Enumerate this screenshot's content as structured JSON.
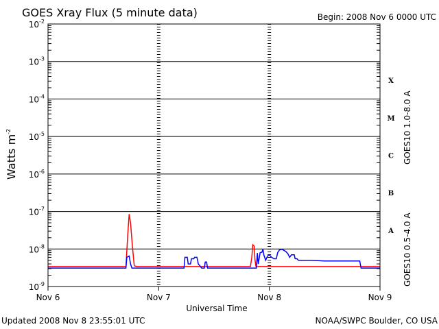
{
  "header": {
    "title": "GOES Xray Flux (5 minute data)",
    "begin": "Begin:  2008 Nov 6 0000 UTC"
  },
  "footer": {
    "updated": "Updated 2008 Nov  8 23:55:01 UTC",
    "credit": "NOAA/SWPC Boulder, CO USA"
  },
  "colors": {
    "long": "#ff0000",
    "short": "#0000ff",
    "grid": "#000000"
  },
  "chart_data": {
    "type": "line",
    "title": "GOES Xray Flux (5 minute data)",
    "xlabel": "Universal Time",
    "ylabel_base": "Watts m",
    "ylabel_exp": "-2",
    "y_scale": "log",
    "ylim": [
      1e-09,
      0.01
    ],
    "y_ticks": [
      {
        "base": "10",
        "exp": "-9",
        "value": 1e-09
      },
      {
        "base": "10",
        "exp": "-8",
        "value": 1e-08
      },
      {
        "base": "10",
        "exp": "-7",
        "value": 1e-07
      },
      {
        "base": "10",
        "exp": "-6",
        "value": 1e-06
      },
      {
        "base": "10",
        "exp": "-5",
        "value": 1e-05
      },
      {
        "base": "10",
        "exp": "-4",
        "value": 0.0001
      },
      {
        "base": "10",
        "exp": "-3",
        "value": 0.001
      },
      {
        "base": "10",
        "exp": "-2",
        "value": 0.01
      }
    ],
    "x_ticks": [
      "Nov 6",
      "Nov 7",
      "Nov 8",
      "Nov 9"
    ],
    "xlim_hours": [
      0,
      72
    ],
    "flare_classes": [
      {
        "label": "A",
        "value": 3.16e-08
      },
      {
        "label": "B",
        "value": 3.16e-07
      },
      {
        "label": "C",
        "value": 3.16e-06
      },
      {
        "label": "M",
        "value": 3.16e-05
      },
      {
        "label": "X",
        "value": 0.000316
      }
    ],
    "series": [
      {
        "name": "GOES10 1.0-8.0 A",
        "key": "long",
        "points": [
          [
            0,
            3.4e-09
          ],
          [
            16.9,
            3.4e-09
          ],
          [
            17.3,
            2.5e-08
          ],
          [
            17.6,
            8.5e-08
          ],
          [
            17.9,
            5e-08
          ],
          [
            18.3,
            1.2e-08
          ],
          [
            18.7,
            3.6e-09
          ],
          [
            19.2,
            3.4e-09
          ],
          [
            43.9,
            3.4e-09
          ],
          [
            44.2,
            6e-09
          ],
          [
            44.4,
            1.3e-08
          ],
          [
            44.7,
            1.2e-08
          ],
          [
            44.9,
            5e-09
          ],
          [
            45.1,
            3.4e-09
          ],
          [
            72,
            3.4e-09
          ]
        ]
      },
      {
        "name": "GOES10 0.5-4.0 A",
        "key": "short",
        "points": [
          [
            0,
            3.1e-09
          ],
          [
            16.9,
            3.1e-09
          ],
          [
            17.1,
            6e-09
          ],
          [
            17.6,
            6.5e-09
          ],
          [
            17.9,
            4e-09
          ],
          [
            18.2,
            3.1e-09
          ],
          [
            29.5,
            3.1e-09
          ],
          [
            29.7,
            6e-09
          ],
          [
            30.2,
            6e-09
          ],
          [
            30.4,
            4e-09
          ],
          [
            30.9,
            4e-09
          ],
          [
            31.1,
            5.5e-09
          ],
          [
            31.6,
            5.5e-09
          ],
          [
            31.8,
            6e-09
          ],
          [
            32.3,
            6e-09
          ],
          [
            32.6,
            4e-09
          ],
          [
            33,
            3.5e-09
          ],
          [
            33.3,
            3.1e-09
          ],
          [
            33.9,
            3.1e-09
          ],
          [
            34.1,
            4.5e-09
          ],
          [
            34.4,
            4.5e-09
          ],
          [
            34.6,
            3.1e-09
          ],
          [
            45.2,
            3.1e-09
          ],
          [
            45.4,
            7.8e-09
          ],
          [
            45.6,
            4e-09
          ],
          [
            46,
            8e-09
          ],
          [
            46.4,
            8.2e-09
          ],
          [
            46.6,
            1e-08
          ],
          [
            46.8,
            7e-09
          ],
          [
            47.2,
            5e-09
          ],
          [
            47.6,
            6.5e-09
          ],
          [
            48,
            7e-09
          ],
          [
            48.5,
            6e-09
          ],
          [
            49,
            5.5e-09
          ],
          [
            49.5,
            5.5e-09
          ],
          [
            49.8,
            8e-09
          ],
          [
            50.2,
            9.5e-09
          ],
          [
            50.8,
            9.8e-09
          ],
          [
            51.3,
            9e-09
          ],
          [
            51.6,
            8.5e-09
          ],
          [
            52,
            7.5e-09
          ],
          [
            52.4,
            6e-09
          ],
          [
            52.8,
            7e-09
          ],
          [
            53.4,
            7e-09
          ],
          [
            53.6,
            5.5e-09
          ],
          [
            54,
            5.5e-09
          ],
          [
            54.3,
            5e-09
          ],
          [
            57,
            5e-09
          ],
          [
            60,
            4.8e-09
          ],
          [
            66,
            4.8e-09
          ],
          [
            67.6,
            4.8e-09
          ],
          [
            67.9,
            3.1e-09
          ],
          [
            72,
            3.1e-09
          ]
        ]
      }
    ]
  }
}
